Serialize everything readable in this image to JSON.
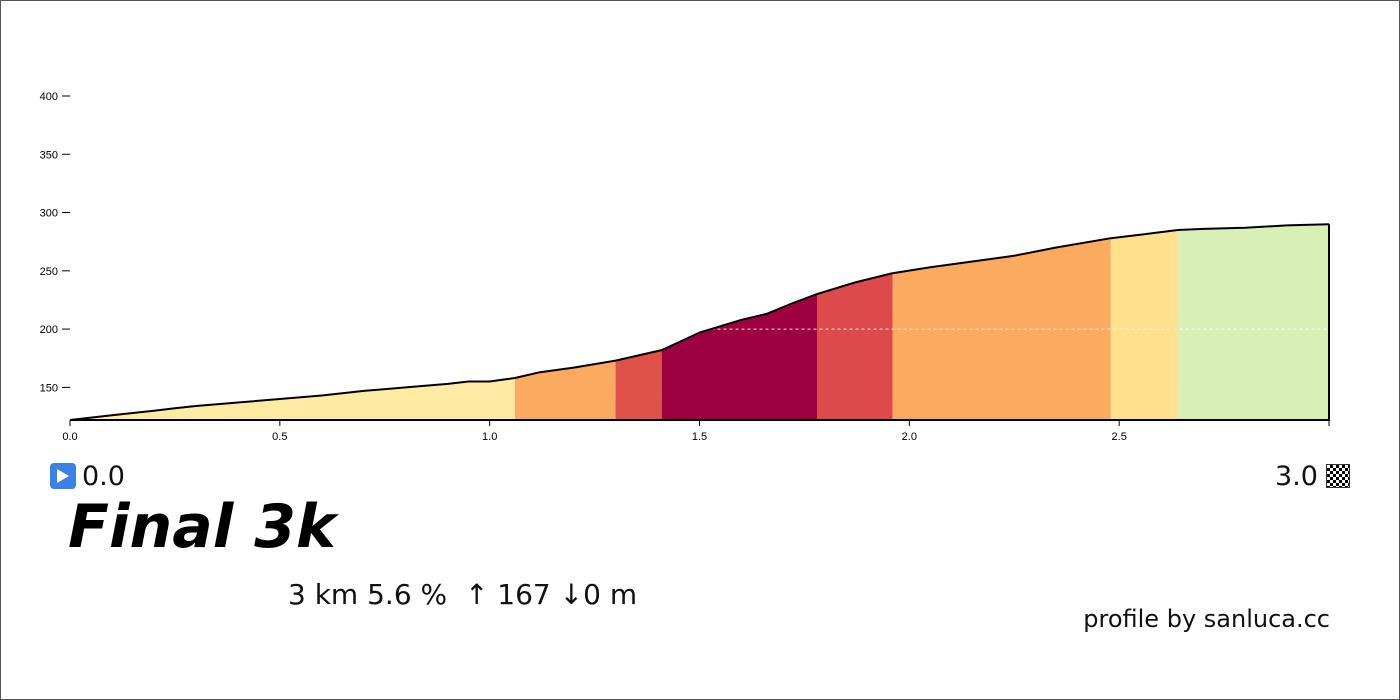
{
  "chart_data": {
    "type": "area",
    "xlim": [
      0,
      3.0
    ],
    "ylim": [
      122,
      400
    ],
    "x_ticks": [
      {
        "value": 0.0,
        "label": "0.0"
      },
      {
        "value": 0.5,
        "label": "0.5"
      },
      {
        "value": 1.0,
        "label": "1.0"
      },
      {
        "value": 1.5,
        "label": "1.5"
      },
      {
        "value": 2.0,
        "label": "2.0"
      },
      {
        "value": 2.5,
        "label": "2.5"
      }
    ],
    "y_ticks": [
      {
        "value": 150,
        "label": "150"
      },
      {
        "value": 200,
        "label": "200"
      },
      {
        "value": 250,
        "label": "250"
      },
      {
        "value": 300,
        "label": "300"
      },
      {
        "value": 350,
        "label": "350"
      },
      {
        "value": 400,
        "label": "400"
      }
    ],
    "reference_line": {
      "y": 200,
      "x_from": 1.5,
      "x_to": 3.0
    },
    "profile": {
      "x": [
        0.0,
        0.1,
        0.2,
        0.25,
        0.3,
        0.4,
        0.5,
        0.6,
        0.7,
        0.8,
        0.9,
        0.95,
        1.0,
        1.06,
        1.12,
        1.2,
        1.3,
        1.41,
        1.5,
        1.6,
        1.66,
        1.72,
        1.78,
        1.87,
        1.96,
        2.05,
        2.15,
        2.25,
        2.35,
        2.48,
        2.55,
        2.64,
        2.7,
        2.8,
        2.9,
        3.0
      ],
      "y": [
        122,
        126,
        130,
        132,
        134,
        137,
        140,
        143,
        147,
        150,
        153,
        155,
        155,
        158,
        163,
        167,
        173,
        182,
        197,
        208,
        213,
        222,
        230,
        240,
        248,
        253,
        258,
        263,
        270,
        278,
        281,
        285,
        286,
        287,
        289,
        290
      ]
    },
    "segments": [
      {
        "from": 0.0,
        "to": 1.06,
        "color": "#FFEBA3"
      },
      {
        "from": 1.06,
        "to": 1.3,
        "color": "#FBAA5F"
      },
      {
        "from": 1.3,
        "to": 1.41,
        "color": "#E05149"
      },
      {
        "from": 1.41,
        "to": 1.78,
        "color": "#9E0140"
      },
      {
        "from": 1.78,
        "to": 1.96,
        "color": "#DC4A4C"
      },
      {
        "from": 1.96,
        "to": 2.48,
        "color": "#FBAA5F"
      },
      {
        "from": 2.48,
        "to": 2.64,
        "color": "#FEE08D"
      },
      {
        "from": 2.64,
        "to": 3.0,
        "color": "#D8EFB5"
      }
    ]
  },
  "start": {
    "label": "0.0",
    "icon": "play-icon"
  },
  "finish": {
    "label": "3.0",
    "icon": "checkered-flag-icon"
  },
  "title": "Final 3k",
  "stats": "3 km 5.6 %  ↑ 167 ↓0 m",
  "credit": "profile by sanluca.cc"
}
